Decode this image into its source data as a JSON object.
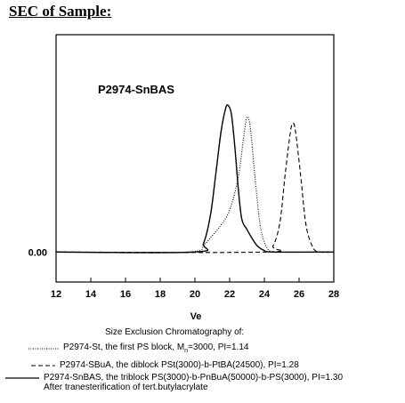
{
  "page": {
    "heading": "SEC of Sample:"
  },
  "chart_data": {
    "type": "line",
    "title": "P2974-SnBAS",
    "xlabel": "Ve",
    "ylabel": "",
    "xlim": [
      12,
      28
    ],
    "x_ticks": [
      "12",
      "14",
      "16",
      "18",
      "20",
      "22",
      "24",
      "26",
      "28"
    ],
    "y_tick_labels": [
      {
        "value": 0,
        "label": "0.00"
      }
    ],
    "ylim": [
      -0.2,
      1.45
    ],
    "grid": false,
    "legend_position": "below",
    "legend_caption": "Size Exclusion Chromatography of:",
    "series": [
      {
        "name": "P2974-St, the first PS block, Mn=3000, PI=1.14",
        "style": "dotted",
        "x": [
          12,
          19.5,
          20.5,
          21.0,
          21.5,
          22.0,
          22.5,
          22.8,
          23.0,
          23.2,
          23.5,
          23.8,
          24.2,
          24.6,
          25.0,
          26.0,
          28.0
        ],
        "y": [
          0,
          0.0,
          0.05,
          0.11,
          0.18,
          0.28,
          0.5,
          0.76,
          0.9,
          0.82,
          0.45,
          0.15,
          0.02,
          0.0,
          0.0,
          0.0,
          0.0
        ]
      },
      {
        "name": "P2974-SBuA, the diblock PSt(3000)-b-PtBA(24500), PI=1.28",
        "style": "dashed",
        "x": [
          12,
          24.0,
          24.5,
          24.9,
          25.2,
          25.5,
          25.65,
          25.8,
          26.1,
          26.4,
          26.8,
          27.2,
          28.0
        ],
        "y": [
          0,
          0.0,
          0.04,
          0.2,
          0.52,
          0.8,
          0.86,
          0.8,
          0.5,
          0.18,
          0.03,
          0.0,
          0.0
        ]
      },
      {
        "name": "P2974-SnBAS, the triblock PS(3000)-b-PnBuA(50000)-b-PS(3000), PI=1.30",
        "style": "solid",
        "x": [
          12,
          20.0,
          20.5,
          20.9,
          21.2,
          21.5,
          21.75,
          21.9,
          22.1,
          22.3,
          22.5,
          22.7,
          23.0,
          23.3,
          23.6,
          24.0,
          24.5,
          28.0
        ],
        "y": [
          0,
          0.0,
          0.06,
          0.25,
          0.52,
          0.8,
          0.95,
          0.98,
          0.92,
          0.7,
          0.42,
          0.22,
          0.15,
          0.09,
          0.04,
          0.01,
          0.0,
          0.0
        ]
      }
    ],
    "legend": [
      {
        "style": "dotted",
        "pre": "P2974-St, the first PS block, M",
        "sub": "n",
        "post": "=3000, PI=1.14"
      },
      {
        "style": "dashed",
        "text": "P2974-SBuA, the diblock PSt(3000)-b-PtBA(24500),  PI=1.28"
      },
      {
        "style": "solid",
        "text": "P2974-SnBAS, the triblock PS(3000)-b-PnBuA(50000)-b-PS(3000), PI=1.30",
        "text2": "After tranesterification of tert.butylacrylate"
      }
    ]
  }
}
